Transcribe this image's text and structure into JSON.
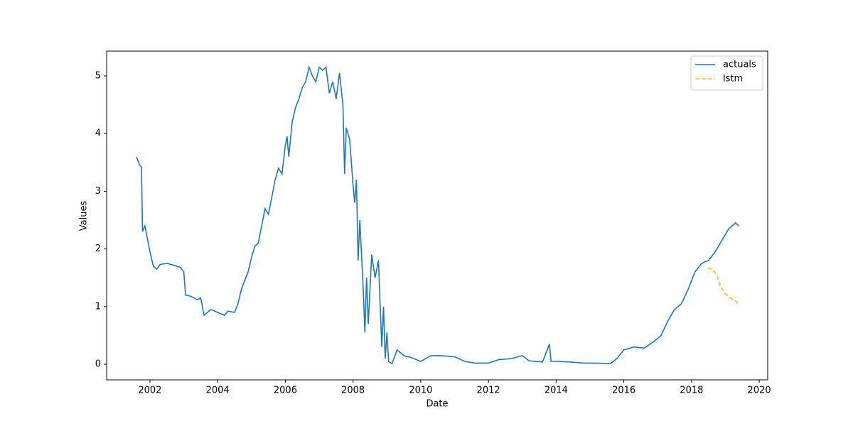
{
  "chart_data": {
    "type": "line",
    "xlabel": "Date",
    "ylabel": "Values",
    "xlim": [
      2000.72,
      2020.25
    ],
    "xticks": [
      2002,
      2004,
      2006,
      2008,
      2010,
      2012,
      2014,
      2016,
      2018,
      2020
    ],
    "ylim": [
      -0.27,
      5.43
    ],
    "yticks": [
      0,
      1,
      2,
      3,
      4,
      5
    ],
    "legend": "upper right",
    "series": [
      {
        "name": "actuals",
        "color": "#1f77b4",
        "style": "solid",
        "x": [
          2001.6,
          2001.7,
          2001.75,
          2001.78,
          2001.85,
          2001.9,
          2002.0,
          2002.1,
          2002.2,
          2002.3,
          2002.5,
          2002.7,
          2002.9,
          2003.0,
          2003.05,
          2003.2,
          2003.4,
          2003.5,
          2003.6,
          2003.8,
          2004.0,
          2004.2,
          2004.3,
          2004.5,
          2004.6,
          2004.7,
          2004.8,
          2004.9,
          2005.0,
          2005.1,
          2005.2,
          2005.3,
          2005.4,
          2005.5,
          2005.6,
          2005.7,
          2005.8,
          2005.9,
          2006.0,
          2006.05,
          2006.1,
          2006.2,
          2006.3,
          2006.4,
          2006.5,
          2006.6,
          2006.7,
          2006.8,
          2006.9,
          2007.0,
          2007.1,
          2007.2,
          2007.3,
          2007.4,
          2007.5,
          2007.6,
          2007.7,
          2007.75,
          2007.8,
          2007.9,
          2008.0,
          2008.05,
          2008.1,
          2008.15,
          2008.2,
          2008.3,
          2008.35,
          2008.4,
          2008.45,
          2008.55,
          2008.65,
          2008.75,
          2008.85,
          2008.9,
          2008.95,
          2009.0,
          2009.05,
          2009.15,
          2009.3,
          2009.5,
          2009.7,
          2010.0,
          2010.3,
          2010.6,
          2011.0,
          2011.3,
          2011.6,
          2012.0,
          2012.3,
          2012.7,
          2013.0,
          2013.2,
          2013.6,
          2013.8,
          2013.85,
          2014.0,
          2014.4,
          2014.8,
          2015.2,
          2015.6,
          2015.8,
          2016.0,
          2016.3,
          2016.6,
          2016.9,
          2017.1,
          2017.3,
          2017.5,
          2017.7,
          2017.9,
          2018.1,
          2018.3,
          2018.5,
          2018.7,
          2018.9,
          2019.1,
          2019.3,
          2019.4
        ],
        "values": [
          3.59,
          3.45,
          3.42,
          2.3,
          2.4,
          2.25,
          1.95,
          1.7,
          1.65,
          1.73,
          1.75,
          1.72,
          1.68,
          1.6,
          1.2,
          1.18,
          1.12,
          1.15,
          0.85,
          0.95,
          0.9,
          0.85,
          0.92,
          0.9,
          1.05,
          1.3,
          1.45,
          1.6,
          1.85,
          2.05,
          2.1,
          2.4,
          2.7,
          2.6,
          2.9,
          3.2,
          3.4,
          3.3,
          3.8,
          3.95,
          3.6,
          4.2,
          4.45,
          4.6,
          4.8,
          4.9,
          5.15,
          5.0,
          4.9,
          5.15,
          5.1,
          5.15,
          4.7,
          4.9,
          4.6,
          5.05,
          4.5,
          3.3,
          4.1,
          3.9,
          3.1,
          2.8,
          3.2,
          1.8,
          2.5,
          1.3,
          0.55,
          1.5,
          0.7,
          1.9,
          1.5,
          1.8,
          0.3,
          1.0,
          0.1,
          0.55,
          0.05,
          0.01,
          0.25,
          0.15,
          0.12,
          0.05,
          0.15,
          0.15,
          0.13,
          0.05,
          0.02,
          0.02,
          0.08,
          0.1,
          0.15,
          0.06,
          0.04,
          0.35,
          0.05,
          0.05,
          0.04,
          0.02,
          0.02,
          0.01,
          0.1,
          0.25,
          0.3,
          0.28,
          0.4,
          0.5,
          0.75,
          0.95,
          1.05,
          1.3,
          1.6,
          1.75,
          1.8,
          1.95,
          2.15,
          2.35,
          2.45,
          2.4
        ]
      },
      {
        "name": "lstm",
        "color": "#ffb733",
        "style": "dashed",
        "x": [
          2018.47,
          2018.6,
          2018.75,
          2018.85,
          2019.0,
          2019.15,
          2019.3,
          2019.37
        ],
        "values": [
          1.67,
          1.65,
          1.55,
          1.35,
          1.22,
          1.15,
          1.1,
          1.05
        ]
      }
    ]
  }
}
